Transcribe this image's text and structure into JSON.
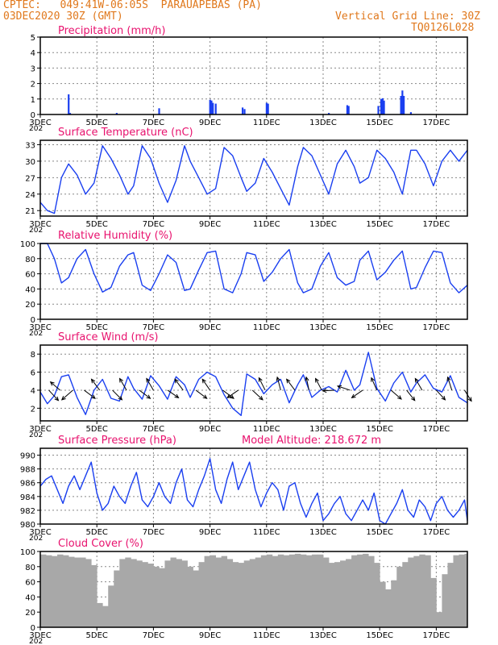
{
  "header": {
    "left_line1": "CPTEC:   049:41W-06:05S  PARAUAPEBAS (PA)",
    "left_line2": "03DEC2020 30Z (GMT)",
    "right_line1": "Vertical Grid Line: 30Z",
    "right_line2": "TQ0126L028",
    "color": "#e0781c"
  },
  "colors": {
    "series": "#1a3ff0",
    "title": "#e8126e",
    "cloud": "#a8a8a8",
    "arrow": "#000000"
  },
  "x_axis": {
    "tick_labels": [
      "3DEC",
      "5DEC",
      "7DEC",
      "9DEC",
      "11DEC",
      "13DEC",
      "15DEC",
      "17DEC"
    ],
    "tick_days": [
      3,
      5,
      7,
      9,
      11,
      13,
      15,
      17
    ],
    "range_days": [
      3,
      18.1
    ],
    "year_fragment": "202"
  },
  "chart_data": [
    {
      "type": "bar",
      "title": "Precipitation (mm/h)",
      "ylim": [
        0,
        5
      ],
      "yticks": [
        "0",
        "1",
        "2",
        "3",
        "4",
        "5"
      ],
      "grid": true,
      "bars": [
        {
          "x": 4.0,
          "y": 1.3
        },
        {
          "x": 4.05,
          "y": 0.1
        },
        {
          "x": 5.7,
          "y": 0.1
        },
        {
          "x": 7.2,
          "y": 0.4
        },
        {
          "x": 9.0,
          "y": 0.95
        },
        {
          "x": 9.05,
          "y": 0.9
        },
        {
          "x": 9.1,
          "y": 0.75
        },
        {
          "x": 9.2,
          "y": 0.7
        },
        {
          "x": 10.15,
          "y": 0.45
        },
        {
          "x": 10.22,
          "y": 0.35
        },
        {
          "x": 11.0,
          "y": 0.75
        },
        {
          "x": 11.05,
          "y": 0.7
        },
        {
          "x": 13.2,
          "y": 0.1
        },
        {
          "x": 13.85,
          "y": 0.6
        },
        {
          "x": 13.9,
          "y": 0.55
        },
        {
          "x": 14.95,
          "y": 0.55
        },
        {
          "x": 15.05,
          "y": 1.0
        },
        {
          "x": 15.1,
          "y": 1.05
        },
        {
          "x": 15.15,
          "y": 0.9
        },
        {
          "x": 15.75,
          "y": 1.2
        },
        {
          "x": 15.8,
          "y": 1.55
        },
        {
          "x": 15.85,
          "y": 1.2
        },
        {
          "x": 16.1,
          "y": 0.15
        }
      ]
    },
    {
      "type": "line",
      "title": "Surface Temperature (nC)",
      "ylim": [
        20,
        33.8
      ],
      "yticks": [
        "21",
        "24",
        "27",
        "30",
        "33"
      ],
      "ytick_values": [
        21,
        24,
        27,
        30,
        33
      ],
      "grid": true,
      "x": [
        3.0,
        3.25,
        3.5,
        3.75,
        4.0,
        4.3,
        4.6,
        4.9,
        5.2,
        5.5,
        5.8,
        6.1,
        6.3,
        6.6,
        6.9,
        7.2,
        7.5,
        7.8,
        8.1,
        8.3,
        8.6,
        8.9,
        9.2,
        9.5,
        9.8,
        10.1,
        10.3,
        10.6,
        10.9,
        11.2,
        11.5,
        11.8,
        12.1,
        12.3,
        12.6,
        12.9,
        13.2,
        13.5,
        13.8,
        14.1,
        14.3,
        14.6,
        14.9,
        15.2,
        15.5,
        15.8,
        16.1,
        16.3,
        16.6,
        16.9,
        17.2,
        17.5,
        17.8,
        18.1
      ],
      "y": [
        22.5,
        21.0,
        20.5,
        27.0,
        29.5,
        27.5,
        24.0,
        26.0,
        32.8,
        30.5,
        27.5,
        24.0,
        25.5,
        32.8,
        30.5,
        26.0,
        22.5,
        26.5,
        32.8,
        30.0,
        27.0,
        24.0,
        25.0,
        32.5,
        31.0,
        27.0,
        24.5,
        26.0,
        30.5,
        28.0,
        25.0,
        22.0,
        29.0,
        32.5,
        31.0,
        27.5,
        24.0,
        29.5,
        32.0,
        29.0,
        26.0,
        27.0,
        32.0,
        30.5,
        28.0,
        24.0,
        32.0,
        32.0,
        29.5,
        25.5,
        30.0,
        32.0,
        30.0,
        32.0
      ]
    },
    {
      "type": "line",
      "title": "Relative Humidity (%)",
      "ylim": [
        0,
        100
      ],
      "yticks": [
        "0",
        "20",
        "40",
        "60",
        "80",
        "100"
      ],
      "ytick_values": [
        0,
        20,
        40,
        60,
        80,
        100
      ],
      "grid": true,
      "x": [
        3.0,
        3.25,
        3.5,
        3.75,
        4.0,
        4.3,
        4.6,
        4.9,
        5.2,
        5.5,
        5.8,
        6.1,
        6.3,
        6.6,
        6.9,
        7.2,
        7.5,
        7.8,
        8.1,
        8.3,
        8.6,
        8.9,
        9.2,
        9.5,
        9.8,
        10.1,
        10.3,
        10.6,
        10.9,
        11.2,
        11.5,
        11.8,
        12.1,
        12.3,
        12.6,
        12.9,
        13.2,
        13.5,
        13.8,
        14.1,
        14.3,
        14.6,
        14.9,
        15.2,
        15.5,
        15.8,
        16.1,
        16.3,
        16.6,
        16.9,
        17.2,
        17.5,
        17.8,
        18.1
      ],
      "y": [
        100,
        100,
        80,
        48,
        55,
        80,
        92,
        60,
        36,
        42,
        70,
        85,
        88,
        45,
        38,
        60,
        85,
        75,
        38,
        40,
        65,
        88,
        90,
        40,
        35,
        60,
        88,
        85,
        50,
        62,
        80,
        92,
        48,
        35,
        40,
        70,
        88,
        55,
        45,
        50,
        78,
        90,
        52,
        62,
        78,
        90,
        40,
        42,
        68,
        90,
        88,
        48,
        35,
        45
      ]
    },
    {
      "type": "line",
      "title": "Surface Wind (m/s)",
      "ylim": [
        0.6,
        9.0
      ],
      "yticks": [
        "2",
        "4",
        "6",
        "8"
      ],
      "ytick_values": [
        2,
        4,
        6,
        8
      ],
      "grid": true,
      "x": [
        3.0,
        3.25,
        3.5,
        3.75,
        4.0,
        4.3,
        4.6,
        4.9,
        5.2,
        5.5,
        5.8,
        6.1,
        6.3,
        6.6,
        6.9,
        7.2,
        7.5,
        7.8,
        8.1,
        8.3,
        8.6,
        8.9,
        9.2,
        9.5,
        9.8,
        10.1,
        10.3,
        10.6,
        10.9,
        11.2,
        11.5,
        11.8,
        12.1,
        12.3,
        12.6,
        12.9,
        13.2,
        13.5,
        13.8,
        14.1,
        14.3,
        14.6,
        14.9,
        15.2,
        15.5,
        15.8,
        16.1,
        16.3,
        16.6,
        16.9,
        17.2,
        17.5,
        17.8,
        18.1
      ],
      "y": [
        3.8,
        2.5,
        3.4,
        5.5,
        5.7,
        3.2,
        1.3,
        4.0,
        5.2,
        3.1,
        2.8,
        5.5,
        4.2,
        3.0,
        5.6,
        4.5,
        3.0,
        5.5,
        4.6,
        3.2,
        5.2,
        6.0,
        5.5,
        3.5,
        2.0,
        1.2,
        5.8,
        5.2,
        3.6,
        4.6,
        5.2,
        2.6,
        4.6,
        5.7,
        3.2,
        4.0,
        4.4,
        3.8,
        6.2,
        4.0,
        4.6,
        8.2,
        4.2,
        2.8,
        4.8,
        6.0,
        3.8,
        4.8,
        5.7,
        4.2,
        3.8,
        5.6,
        3.2,
        2.6
      ],
      "arrows": [
        {
          "x": 3.3,
          "u": 0.7,
          "v": 0.75
        },
        {
          "x": 3.7,
          "u": -0.7,
          "v": -0.6
        },
        {
          "x": 4.15,
          "u": -0.8,
          "v": 0.7
        },
        {
          "x": 4.55,
          "u": 0.8,
          "v": 0.6
        },
        {
          "x": 5.1,
          "u": -0.6,
          "v": -0.8
        },
        {
          "x": 5.55,
          "u": 0.7,
          "v": 0.7
        },
        {
          "x": 6.05,
          "u": -0.5,
          "v": -0.85
        },
        {
          "x": 6.5,
          "u": 0.8,
          "v": 0.6
        },
        {
          "x": 7.0,
          "u": -0.5,
          "v": -0.85
        },
        {
          "x": 7.5,
          "u": 0.8,
          "v": 0.55
        },
        {
          "x": 8.05,
          "u": -0.6,
          "v": -0.8
        },
        {
          "x": 8.5,
          "u": 0.8,
          "v": 0.6
        },
        {
          "x": 9.0,
          "u": -0.55,
          "v": -0.8
        },
        {
          "x": 9.45,
          "u": 0.8,
          "v": 0.6
        },
        {
          "x": 10.0,
          "u": -0.8,
          "v": 0.55
        },
        {
          "x": 10.5,
          "u": 0.75,
          "v": 0.7
        },
        {
          "x": 10.95,
          "u": -0.45,
          "v": -0.9
        },
        {
          "x": 11.5,
          "u": -0.25,
          "v": -0.95
        },
        {
          "x": 12.0,
          "u": -0.6,
          "v": -0.8
        },
        {
          "x": 12.5,
          "u": -0.2,
          "v": -0.95
        },
        {
          "x": 12.95,
          "u": -0.45,
          "v": -0.85
        },
        {
          "x": 13.4,
          "u": -0.85,
          "v": 0.05
        },
        {
          "x": 13.95,
          "u": -0.9,
          "v": -0.3
        },
        {
          "x": 14.4,
          "u": -0.8,
          "v": 0.55
        },
        {
          "x": 14.9,
          "u": -0.4,
          "v": -0.9
        },
        {
          "x": 15.4,
          "u": 0.75,
          "v": 0.65
        },
        {
          "x": 15.95,
          "u": 0.6,
          "v": 0.75
        },
        {
          "x": 16.5,
          "u": -0.5,
          "v": -0.85
        },
        {
          "x": 17.0,
          "u": 0.65,
          "v": 0.7
        },
        {
          "x": 17.55,
          "u": -0.3,
          "v": -0.95
        },
        {
          "x": 18.0,
          "u": 0.5,
          "v": 0.8
        }
      ]
    },
    {
      "type": "line",
      "title": "Surface Pressure (hPa)",
      "subtitle": "Model Altitude: 218.672  m",
      "ylim": [
        980,
        991
      ],
      "yticks": [
        "980",
        "982",
        "984",
        "986",
        "988",
        "990"
      ],
      "ytick_values": [
        980,
        982,
        984,
        986,
        988,
        990
      ],
      "grid": true,
      "x": [
        3.0,
        3.2,
        3.4,
        3.6,
        3.8,
        4.0,
        4.2,
        4.4,
        4.6,
        4.8,
        5.0,
        5.2,
        5.4,
        5.6,
        5.8,
        6.0,
        6.2,
        6.4,
        6.6,
        6.8,
        7.0,
        7.2,
        7.4,
        7.6,
        7.8,
        8.0,
        8.2,
        8.4,
        8.6,
        8.8,
        9.0,
        9.2,
        9.4,
        9.6,
        9.8,
        10.0,
        10.2,
        10.4,
        10.6,
        10.8,
        11.0,
        11.2,
        11.4,
        11.6,
        11.8,
        12.0,
        12.2,
        12.4,
        12.6,
        12.8,
        13.0,
        13.2,
        13.4,
        13.6,
        13.8,
        14.0,
        14.2,
        14.4,
        14.6,
        14.8,
        15.0,
        15.2,
        15.4,
        15.6,
        15.8,
        16.0,
        16.2,
        16.4,
        16.6,
        16.8,
        17.0,
        17.2,
        17.4,
        17.6,
        17.8,
        18.0,
        18.1
      ],
      "y": [
        985.5,
        986.5,
        987.0,
        985.0,
        983.0,
        985.5,
        987.0,
        985.0,
        987.0,
        989.0,
        984.5,
        982.0,
        983.0,
        985.5,
        984.0,
        983.0,
        985.5,
        987.5,
        983.5,
        982.5,
        984.0,
        986.0,
        984.0,
        983.0,
        986.0,
        988.0,
        983.5,
        982.5,
        985.0,
        987.0,
        989.5,
        985.0,
        983.0,
        986.5,
        989.0,
        985.0,
        987.0,
        989.0,
        985.0,
        982.5,
        984.5,
        986.0,
        985.0,
        982.0,
        985.5,
        986.0,
        983.0,
        981.0,
        983.0,
        984.5,
        980.5,
        981.5,
        983.0,
        984.0,
        981.5,
        980.5,
        982.0,
        983.5,
        982.0,
        984.5,
        980.5,
        980.0,
        981.5,
        983.0,
        985.0,
        982.0,
        981.0,
        983.5,
        982.5,
        980.5,
        983.0,
        984.0,
        982.0,
        981.0,
        982.0,
        983.5,
        980.5
      ]
    },
    {
      "type": "bar",
      "title": "Cloud Cover (%)",
      "ylim": [
        0,
        100
      ],
      "yticks": [
        "0",
        "20",
        "40",
        "60",
        "80",
        "100"
      ],
      "ytick_values": [
        0,
        20,
        40,
        60,
        80,
        100
      ],
      "grid": true,
      "x": [
        3.0,
        3.2,
        3.4,
        3.6,
        3.8,
        4.0,
        4.2,
        4.4,
        4.6,
        4.8,
        5.0,
        5.2,
        5.4,
        5.6,
        5.8,
        6.0,
        6.2,
        6.4,
        6.6,
        6.8,
        7.0,
        7.2,
        7.4,
        7.6,
        7.8,
        8.0,
        8.2,
        8.4,
        8.6,
        8.8,
        9.0,
        9.2,
        9.4,
        9.6,
        9.8,
        10.0,
        10.2,
        10.4,
        10.6,
        10.8,
        11.0,
        11.2,
        11.4,
        11.6,
        11.8,
        12.0,
        12.2,
        12.4,
        12.6,
        12.8,
        13.0,
        13.2,
        13.4,
        13.6,
        13.8,
        14.0,
        14.2,
        14.4,
        14.6,
        14.8,
        15.0,
        15.2,
        15.4,
        15.6,
        15.8,
        16.0,
        16.2,
        16.4,
        16.6,
        16.8,
        17.0,
        17.2,
        17.4,
        17.6,
        17.8,
        18.0
      ],
      "values": [
        96,
        95,
        94,
        96,
        95,
        93,
        92,
        92,
        90,
        82,
        32,
        28,
        55,
        75,
        90,
        92,
        90,
        88,
        86,
        84,
        80,
        78,
        88,
        92,
        90,
        88,
        80,
        75,
        86,
        94,
        95,
        92,
        94,
        90,
        86,
        85,
        88,
        90,
        92,
        95,
        96,
        94,
        96,
        95,
        96,
        97,
        96,
        95,
        96,
        96,
        92,
        85,
        86,
        88,
        90,
        95,
        96,
        97,
        94,
        85,
        60,
        50,
        62,
        80,
        86,
        92,
        94,
        96,
        95,
        65,
        20,
        70,
        85,
        95,
        96,
        97
      ]
    }
  ]
}
